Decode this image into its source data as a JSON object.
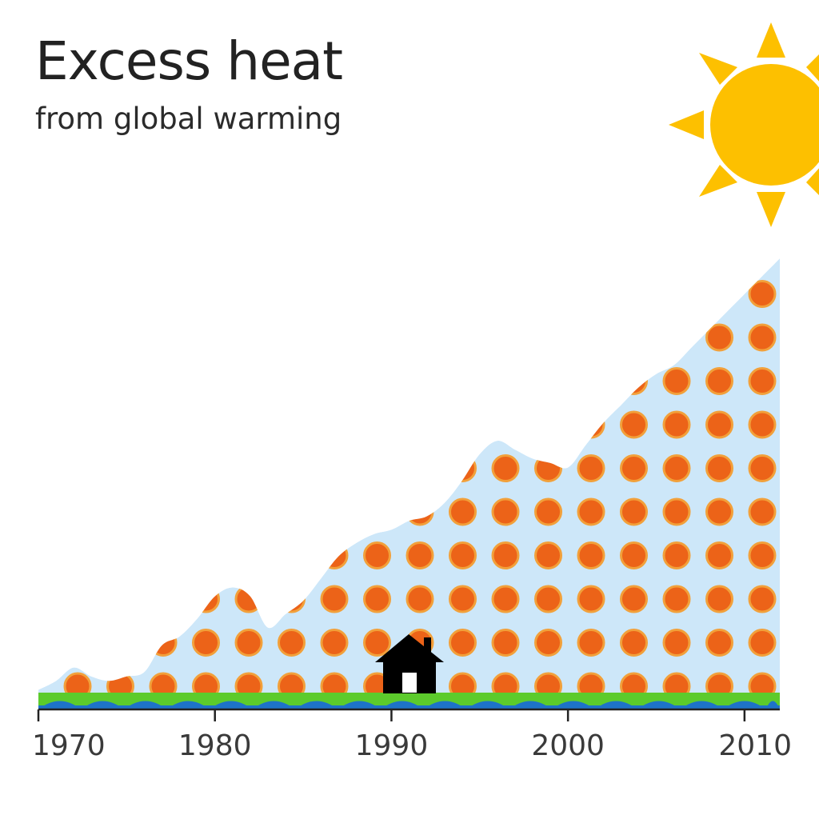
{
  "header": {
    "title": "Excess heat",
    "subtitle": "from global warming"
  },
  "icons": {
    "sun": "sun-icon",
    "house": "house-icon"
  },
  "colors": {
    "sky_fill": "#cde7f9",
    "dot_fill": "#ec6318",
    "dot_ring": "#f2a03a",
    "sun": "#fdc000",
    "grass": "#5ccb2c",
    "water": "#1e73c8",
    "axis": "#222222",
    "text": "#2b2b2b"
  },
  "chart_data": {
    "type": "area",
    "title": "Excess heat",
    "subtitle": "from global warming",
    "xlabel": "",
    "ylabel": "",
    "xlim": [
      1970,
      2012
    ],
    "ylim": [
      0,
      100
    ],
    "grid": false,
    "x_ticks": [
      1970,
      1980,
      1990,
      2000,
      2010
    ],
    "x_tick_labels": [
      "1970",
      "1980",
      "1990",
      "2000",
      "2010"
    ],
    "series": [
      {
        "name": "Excess heat",
        "x": [
          1970,
          1971,
          1972,
          1973,
          1974,
          1975,
          1976,
          1977,
          1978,
          1979,
          1980,
          1981,
          1982,
          1983,
          1984,
          1985,
          1986,
          1987,
          1988,
          1989,
          1990,
          1991,
          1992,
          1993,
          1994,
          1995,
          1996,
          1997,
          1998,
          1999,
          2000,
          2001,
          2002,
          2003,
          2004,
          2005,
          2006,
          2007,
          2008,
          2009,
          2010,
          2011,
          2012
        ],
        "values": [
          1,
          3,
          6,
          4,
          3,
          4,
          5,
          11,
          13,
          17,
          22,
          24,
          22,
          15,
          18,
          21,
          26,
          31,
          34,
          36,
          37,
          39,
          40,
          43,
          48,
          54,
          57,
          55,
          53,
          52,
          51,
          56,
          61,
          65,
          69,
          72,
          74,
          78,
          82,
          86,
          90,
          94,
          98
        ]
      }
    ]
  }
}
